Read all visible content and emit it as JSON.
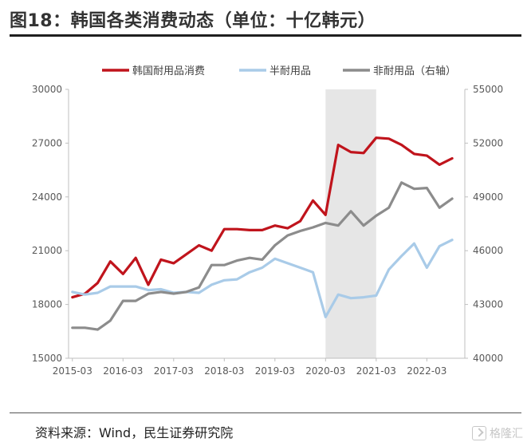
{
  "header": {
    "title": "图18：韩国各类消费动态（单位：十亿韩元）"
  },
  "footer": {
    "source": "资料来源：Wind，民生证券研究院",
    "watermark": "格隆汇"
  },
  "chart_data": {
    "type": "line",
    "x": [
      "2015-03",
      "2015-06",
      "2015-09",
      "2015-12",
      "2016-03",
      "2016-06",
      "2016-09",
      "2016-12",
      "2017-03",
      "2017-06",
      "2017-09",
      "2017-12",
      "2018-03",
      "2018-06",
      "2018-09",
      "2018-12",
      "2019-03",
      "2019-06",
      "2019-09",
      "2019-12",
      "2020-03",
      "2020-06",
      "2020-09",
      "2020-12",
      "2021-03",
      "2021-06",
      "2021-09",
      "2021-12",
      "2022-03",
      "2022-06",
      "2022-09"
    ],
    "xticks": [
      "2015-03",
      "2016-03",
      "2017-03",
      "2018-03",
      "2019-03",
      "2020-03",
      "2021-03",
      "2022-03"
    ],
    "left_axis": {
      "ylim": [
        15000,
        30000
      ],
      "ticks": [
        "15000",
        "18000",
        "21000",
        "24000",
        "27000",
        "30000"
      ]
    },
    "right_axis": {
      "ylim": [
        40000,
        55000
      ],
      "ticks": [
        "40000",
        "43000",
        "46000",
        "49000",
        "52000",
        "55000"
      ]
    },
    "shaded_region": [
      "2020-03",
      "2021-03"
    ],
    "series": [
      {
        "name": "韩国耐用品消费",
        "axis": "left",
        "color": "#c0141c",
        "values": [
          18400,
          18600,
          19200,
          20400,
          19700,
          20600,
          19100,
          20500,
          20300,
          20800,
          21300,
          21000,
          22200,
          22200,
          22150,
          22150,
          22400,
          22250,
          22650,
          23800,
          23000,
          26900,
          26500,
          26450,
          27300,
          27250,
          26900,
          26400,
          26300,
          25800,
          26150
        ]
      },
      {
        "name": "半耐用品",
        "axis": "left",
        "color": "#a9cbe8",
        "values": [
          18700,
          18550,
          18650,
          19000,
          19000,
          19000,
          18800,
          18850,
          18650,
          18700,
          18650,
          19100,
          19350,
          19400,
          19800,
          20050,
          20550,
          20300,
          20050,
          19800,
          17300,
          18550,
          18350,
          18400,
          18500,
          19950,
          20700,
          21400,
          20050,
          21250,
          21600
        ]
      },
      {
        "name": "非耐用品（右轴）",
        "axis": "right",
        "color": "#8c8c8c",
        "values": [
          41700,
          41700,
          41600,
          42100,
          43200,
          43200,
          43600,
          43700,
          43600,
          43700,
          43950,
          45200,
          45200,
          45450,
          45600,
          45500,
          46300,
          46850,
          47100,
          47300,
          47550,
          47400,
          48200,
          47400,
          47950,
          48400,
          49800,
          49450,
          49500,
          48400,
          48900
        ]
      }
    ]
  }
}
